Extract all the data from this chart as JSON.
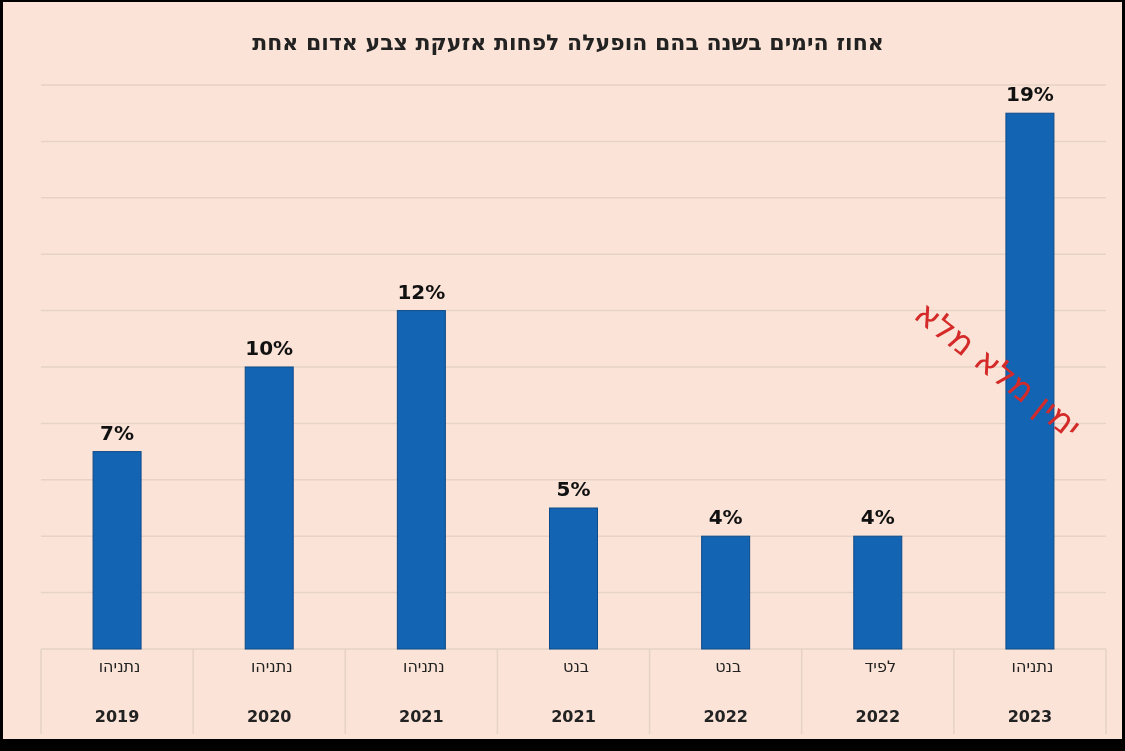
{
  "chart_data": {
    "type": "bar",
    "title": "אחוז הימים בשנה בהם הופעלה לפחות אזעקת צבע אדום אחת",
    "categories": [
      "נתניהו 2019",
      "נתניהו 2020",
      "נתניהו 2021",
      "בנט 2021",
      "בנט 2022",
      "לפיד 2022",
      "נתניהו 2023"
    ],
    "values": [
      7,
      10,
      12,
      5,
      4,
      4,
      19
    ],
    "value_labels": [
      "7%",
      "10%",
      "12%",
      "5%",
      "4%",
      "4%",
      "19%"
    ],
    "color": "#1464b4",
    "ylim": [
      0,
      20
    ],
    "yticks": [
      {
        "value": 0,
        "label": null
      },
      {
        "value": 2,
        "label": null
      },
      {
        "value": 4,
        "label": null
      },
      {
        "value": 6,
        "label": null
      },
      {
        "value": 8,
        "label": null
      },
      {
        "value": 10,
        "label": null
      },
      {
        "value": 12,
        "label": null
      },
      {
        "value": 14,
        "label": null
      },
      {
        "value": 16,
        "label": null
      },
      {
        "value": 18,
        "label": null
      },
      {
        "value": 20,
        "label": null
      }
    ],
    "tick_labels": "x",
    "grid": "y",
    "annotations": [
      "ימין מלא מלא"
    ]
  }
}
